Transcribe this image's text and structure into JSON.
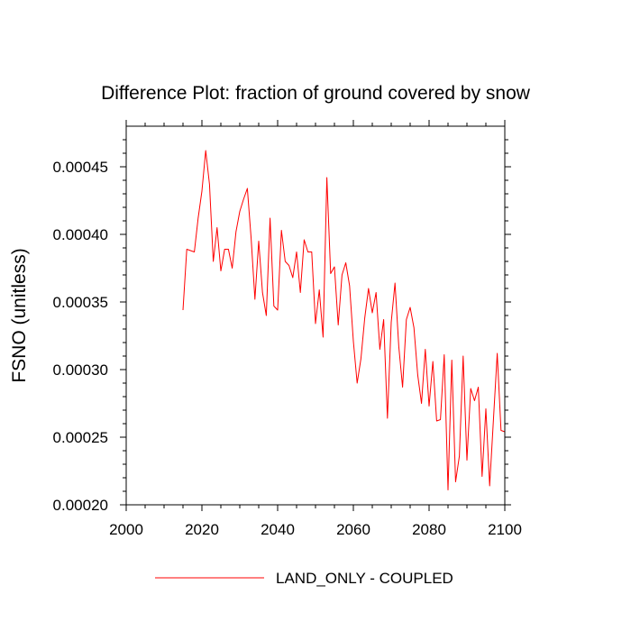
{
  "chart_data": {
    "type": "line",
    "title": "Difference Plot: fraction of ground covered by snow",
    "xlabel": "",
    "ylabel": "FSNO  (unitless)",
    "xlim": [
      2000,
      2100
    ],
    "ylim": [
      0.0002,
      0.00048
    ],
    "x_ticks": [
      2000,
      2020,
      2040,
      2060,
      2080,
      2100
    ],
    "x_tick_labels": [
      "2000",
      "2020",
      "2040",
      "2060",
      "2080",
      "2100"
    ],
    "y_ticks": [
      0.0002,
      0.00025,
      0.0003,
      0.00035,
      0.0004,
      0.00045
    ],
    "y_tick_labels": [
      "0.00020",
      "0.00025",
      "0.00030",
      "0.00035",
      "0.00040",
      "0.00045"
    ],
    "legend": {
      "position": "bottom-center",
      "entries": [
        "LAND_ONLY - COUPLED"
      ]
    },
    "series": [
      {
        "name": "LAND_ONLY - COUPLED",
        "color": "#ff0000",
        "x": [
          2015,
          2016,
          2017,
          2018,
          2019,
          2020,
          2021,
          2022,
          2023,
          2024,
          2025,
          2026,
          2027,
          2028,
          2029,
          2030,
          2031,
          2032,
          2033,
          2034,
          2035,
          2036,
          2037,
          2038,
          2039,
          2040,
          2041,
          2042,
          2043,
          2044,
          2045,
          2046,
          2047,
          2048,
          2049,
          2050,
          2051,
          2052,
          2053,
          2054,
          2055,
          2056,
          2057,
          2058,
          2059,
          2060,
          2061,
          2062,
          2063,
          2064,
          2065,
          2066,
          2067,
          2068,
          2069,
          2070,
          2071,
          2072,
          2073,
          2074,
          2075,
          2076,
          2077,
          2078,
          2079,
          2080,
          2081,
          2082,
          2083,
          2084,
          2085,
          2086,
          2087,
          2088,
          2089,
          2090,
          2091,
          2092,
          2093,
          2094,
          2095,
          2096,
          2097,
          2098,
          2099,
          2100
        ],
        "values": [
          0.000344,
          0.000389,
          0.000388,
          0.000387,
          0.000412,
          0.000432,
          0.000462,
          0.000437,
          0.00038,
          0.000405,
          0.000373,
          0.000389,
          0.000389,
          0.000375,
          0.000402,
          0.000417,
          0.000426,
          0.000434,
          0.000397,
          0.000352,
          0.000395,
          0.000357,
          0.00034,
          0.000412,
          0.000347,
          0.000344,
          0.000403,
          0.00038,
          0.000377,
          0.000368,
          0.000387,
          0.000357,
          0.000396,
          0.000387,
          0.000387,
          0.000334,
          0.000359,
          0.000324,
          0.000442,
          0.000371,
          0.000376,
          0.000333,
          0.00037,
          0.000379,
          0.000362,
          0.000321,
          0.00029,
          0.000308,
          0.000338,
          0.00036,
          0.000342,
          0.000357,
          0.000315,
          0.000337,
          0.000264,
          0.000335,
          0.000364,
          0.000317,
          0.000287,
          0.000337,
          0.000346,
          0.000331,
          0.000296,
          0.000275,
          0.000315,
          0.000273,
          0.000306,
          0.000262,
          0.000263,
          0.000311,
          0.000211,
          0.000307,
          0.000217,
          0.000236,
          0.00031,
          0.000233,
          0.000286,
          0.000277,
          0.000287,
          0.000221,
          0.000271,
          0.000214,
          0.000263,
          0.000312,
          0.000255,
          0.000254
        ]
      }
    ]
  }
}
